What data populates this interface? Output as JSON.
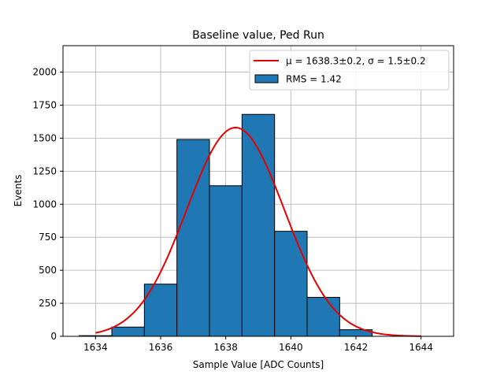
{
  "chart_data": {
    "type": "bar",
    "title": "Baseline value, Ped Run",
    "xlabel": "Sample Value [ADC Counts]",
    "ylabel": "Events",
    "xlim": [
      1633.0,
      1645.0
    ],
    "ylim": [
      0,
      2200
    ],
    "xticks": [
      1634,
      1636,
      1638,
      1640,
      1642,
      1644
    ],
    "yticks": [
      0,
      250,
      500,
      750,
      1000,
      1250,
      1500,
      1750,
      2000
    ],
    "grid": true,
    "legend_position": "top-right",
    "histogram": {
      "name": "RMS = 1.42",
      "bin_edges": [
        1633.5,
        1634.5,
        1635.5,
        1636.5,
        1637.5,
        1638.5,
        1639.5,
        1640.5,
        1641.5,
        1642.5
      ],
      "counts": [
        5,
        70,
        395,
        1490,
        1140,
        1680,
        795,
        295,
        50
      ],
      "color": "#1f77b4",
      "edge_color": "#000000"
    },
    "fit": {
      "name": "μ = 1638.3±0.2, σ = 1.5±0.2",
      "type": "gaussian",
      "mu": 1638.3,
      "sigma": 1.5,
      "amplitude": 1580,
      "x_range": [
        1634.0,
        1644.0
      ],
      "color": "#e50000"
    }
  }
}
